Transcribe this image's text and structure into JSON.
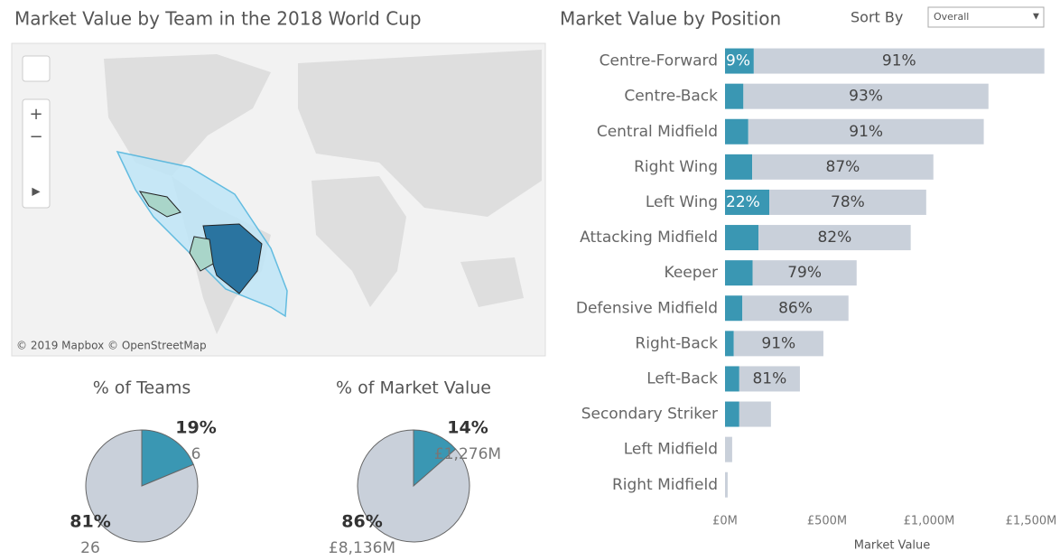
{
  "controls": {
    "sort_label": "Sort By",
    "sort_value": "Overall"
  },
  "chart_data": [
    {
      "type": "map",
      "title": "Market Value by Team in the 2018 World Cup",
      "attribution": "© 2019 Mapbox © OpenStreetMap"
    },
    {
      "type": "stacked-bar",
      "orientation": "horizontal",
      "title": "Market Value by Position",
      "x_label": "Market Value",
      "categories": [
        "Centre-Forward",
        "Centre-Back",
        "Central Midfield",
        "Right Wing",
        "Left Wing",
        "Attacking Midfield",
        "Keeper",
        "Defensive Midfield",
        "Right-Back",
        "Left-Back",
        "Secondary Striker",
        "Left Midfield",
        "Right Midfield"
      ],
      "series": [
        {
          "color": "#3a97b3",
          "values": [
            141,
            90,
            114,
            133,
            217,
            164,
            135,
            85,
            43,
            70,
            70,
            0,
            0
          ],
          "labels": [
            "9%",
            null,
            null,
            null,
            "22%",
            null,
            null,
            null,
            null,
            null,
            null,
            null,
            null
          ]
        },
        {
          "color": "#c9d0da",
          "values": [
            1424,
            1201,
            1154,
            888,
            769,
            746,
            510,
            520,
            439,
            297,
            155,
            35,
            13
          ],
          "labels": [
            "91%",
            "93%",
            "91%",
            "87%",
            "78%",
            "82%",
            "79%",
            "86%",
            "91%",
            "81%",
            null,
            null,
            null
          ]
        }
      ],
      "xlim": [
        0,
        1600
      ],
      "xticks": [
        {
          "value": 0,
          "label": "£0M"
        },
        {
          "value": 500,
          "label": "£500M"
        },
        {
          "value": 1000,
          "label": "£1,000M"
        },
        {
          "value": 1500,
          "label": "£1,500M"
        }
      ]
    },
    {
      "type": "pie",
      "title": "% of Teams",
      "values": [
        6,
        26
      ],
      "value_labels": [
        "6",
        "26"
      ],
      "percent_labels": [
        "19%",
        "81%"
      ],
      "colors": [
        "#3a97b3",
        "#c9d0da"
      ]
    },
    {
      "type": "pie",
      "title": "% of Market Value",
      "values": [
        1276,
        8136
      ],
      "value_labels": [
        "£1,276M",
        "£8,136M"
      ],
      "percent_labels": [
        "14%",
        "86%"
      ],
      "colors": [
        "#3a97b3",
        "#c9d0da"
      ]
    }
  ]
}
